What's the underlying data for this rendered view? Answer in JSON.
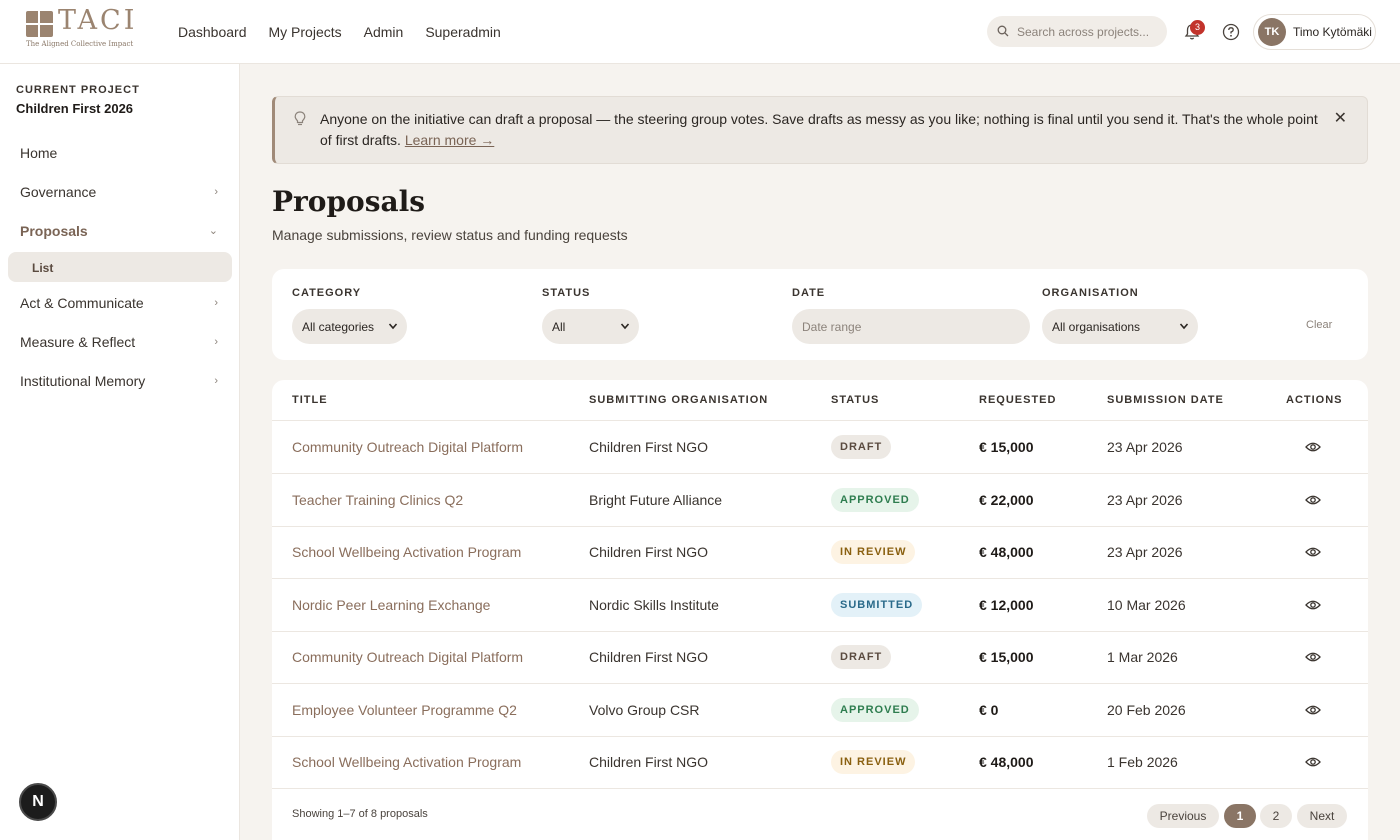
{
  "brand": {
    "logo_text": "TACI",
    "logo_sub": "The Aligned Collective Impact"
  },
  "topnav": [
    "Dashboard",
    "My Projects",
    "Admin",
    "Superadmin"
  ],
  "search": {
    "placeholder": "Search across projects..."
  },
  "notifications": {
    "count": "3"
  },
  "user": {
    "initials": "TK",
    "name": "Timo Kytömäki"
  },
  "sidebar": {
    "current_label": "CURRENT PROJECT",
    "project_name": "Children First 2026",
    "items": [
      {
        "label": "Home",
        "chevron": ""
      },
      {
        "label": "Governance",
        "chevron": "›"
      },
      {
        "label": "Proposals",
        "chevron": "⌄"
      },
      {
        "label": "Act & Communicate",
        "chevron": "›"
      },
      {
        "label": "Measure & Reflect",
        "chevron": "›"
      },
      {
        "label": "Institutional Memory",
        "chevron": "›"
      }
    ],
    "sub_item": "List"
  },
  "notice": {
    "text": "Anyone on the initiative can draft a proposal — the steering group votes. Save drafts as messy as you like; nothing is final until you send it. That's the whole point of first drafts.",
    "link": "Learn more →",
    "close": "✕"
  },
  "page": {
    "title": "Proposals",
    "subtitle": "Manage submissions, review status and funding requests"
  },
  "filters": {
    "category": {
      "label": "CATEGORY",
      "value": "All categories"
    },
    "status": {
      "label": "STATUS",
      "value": "All"
    },
    "date": {
      "label": "DATE",
      "placeholder": "Date range"
    },
    "organisation": {
      "label": "ORGANISATION",
      "value": "All organisations"
    },
    "clear": "Clear"
  },
  "table": {
    "headers": [
      "TITLE",
      "SUBMITTING ORGANISATION",
      "STATUS",
      "REQUESTED",
      "SUBMISSION DATE",
      "ACTIONS"
    ],
    "rows": [
      {
        "title": "Community Outreach Digital Platform",
        "org": "Children First NGO",
        "status": "DRAFT",
        "requested": "€ 15,000",
        "date": "23 Apr 2026"
      },
      {
        "title": "Teacher Training Clinics Q2",
        "org": "Bright Future Alliance",
        "status": "APPROVED",
        "requested": "€ 22,000",
        "date": "23 Apr 2026"
      },
      {
        "title": "School Wellbeing Activation Program",
        "org": "Children First NGO",
        "status": "IN REVIEW",
        "requested": "€ 48,000",
        "date": "23 Apr 2026"
      },
      {
        "title": "Nordic Peer Learning Exchange",
        "org": "Nordic Skills Institute",
        "status": "SUBMITTED",
        "requested": "€ 12,000",
        "date": "10 Mar 2026"
      },
      {
        "title": "Community Outreach Digital Platform",
        "org": "Children First NGO",
        "status": "DRAFT",
        "requested": "€ 15,000",
        "date": "1 Mar 2026"
      },
      {
        "title": "Employee Volunteer Programme Q2",
        "org": "Volvo Group CSR",
        "status": "APPROVED",
        "requested": "€ 0",
        "date": "20 Feb 2026"
      },
      {
        "title": "School Wellbeing Activation Program",
        "org": "Children First NGO",
        "status": "IN REVIEW",
        "requested": "€ 48,000",
        "date": "1 Feb 2026"
      }
    ]
  },
  "pagination": {
    "summary": "Showing 1–7 of 8 proposals",
    "previous": "Previous",
    "pages": [
      "1",
      "2"
    ],
    "next": "Next"
  },
  "dev_badge": "N"
}
